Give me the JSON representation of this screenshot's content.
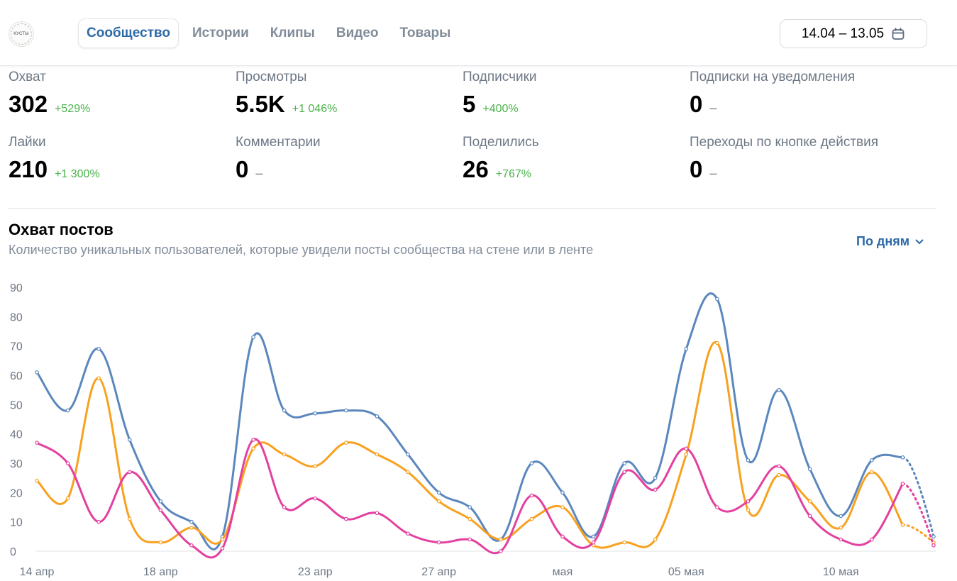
{
  "header": {
    "logo_text": "КУСТЫ",
    "tabs": [
      {
        "label": "Сообщество",
        "active": true
      },
      {
        "label": "Истории",
        "active": false
      },
      {
        "label": "Клипы",
        "active": false
      },
      {
        "label": "Видео",
        "active": false
      },
      {
        "label": "Товары",
        "active": false
      }
    ],
    "date_range": "14.04 – 13.05",
    "date_icon": "calendar-icon"
  },
  "metrics": [
    {
      "label": "Охват",
      "value": "302",
      "delta": "+529%"
    },
    {
      "label": "Просмотры",
      "value": "5.5K",
      "delta": "+1 046%"
    },
    {
      "label": "Подписчики",
      "value": "5",
      "delta": "+400%"
    },
    {
      "label": "Подписки на уведомления",
      "value": "0",
      "delta": "–"
    },
    {
      "label": "Лайки",
      "value": "210",
      "delta": "+1 300%"
    },
    {
      "label": "Комментарии",
      "value": "0",
      "delta": "–"
    },
    {
      "label": "Поделились",
      "value": "26",
      "delta": "+767%"
    },
    {
      "label": "Переходы по кнопке действия",
      "value": "0",
      "delta": "–"
    }
  ],
  "reach_section": {
    "title": "Охват постов",
    "subtitle": "Количество уникальных пользователей, которые увидели посты сообщества на стене или в ленте",
    "period_label": "По дням",
    "period_icon": "chevron-down-icon"
  },
  "colors": {
    "accent": "#2d6aa8",
    "positive": "#4bb34b",
    "series_blue": "#5b87bd",
    "series_orange": "#f8a11f",
    "series_pink": "#e3409f"
  },
  "chart_data": {
    "type": "line",
    "ylim": [
      0,
      90
    ],
    "y_ticks": [
      0,
      10,
      20,
      30,
      40,
      50,
      60,
      70,
      80,
      90
    ],
    "grid": false,
    "x_tick_labels": [
      {
        "index": 0,
        "label": "14 апр"
      },
      {
        "index": 4,
        "label": "18 апр"
      },
      {
        "index": 9,
        "label": "23 апр"
      },
      {
        "index": 13,
        "label": "27 апр"
      },
      {
        "index": 17,
        "label": "мая"
      },
      {
        "index": 21,
        "label": "05 мая"
      },
      {
        "index": 26,
        "label": "10 мая"
      }
    ],
    "dotted_last_segment": true,
    "series": [
      {
        "color": "#5b87bd",
        "values": [
          61,
          48,
          69,
          38,
          17,
          10,
          5,
          73,
          48,
          47,
          48,
          46,
          33,
          20,
          15,
          4,
          30,
          20,
          5,
          30,
          25,
          69,
          86,
          31,
          55,
          28,
          12,
          31,
          32,
          5
        ]
      },
      {
        "color": "#f8a11f",
        "values": [
          24,
          18,
          59,
          11,
          3,
          8,
          4,
          35,
          33,
          29,
          37,
          33,
          27,
          17,
          11,
          4,
          11,
          15,
          2,
          3,
          4,
          33,
          71,
          14,
          26,
          17,
          8,
          27,
          9,
          3
        ]
      },
      {
        "color": "#e3409f",
        "values": [
          37,
          30,
          10,
          27,
          14,
          2,
          1,
          38,
          15,
          18,
          11,
          13,
          6,
          3,
          4,
          0,
          19,
          5,
          3,
          27,
          21,
          35,
          15,
          17,
          29,
          12,
          4,
          4,
          23,
          2
        ]
      }
    ]
  }
}
